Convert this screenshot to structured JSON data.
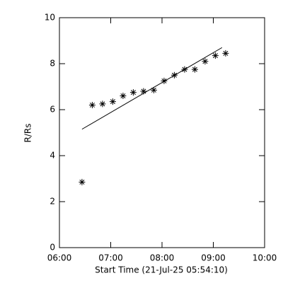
{
  "chart_data": {
    "type": "scatter",
    "xlabel": "Start Time (21-Jul-25 05:54:10)",
    "ylabel": "R/Rs",
    "xlim": [
      6,
      10
    ],
    "xticks": [
      {
        "value": 6,
        "label": "06:00"
      },
      {
        "value": 7,
        "label": "07:00"
      },
      {
        "value": 8,
        "label": "08:00"
      },
      {
        "value": 9,
        "label": "09:00"
      },
      {
        "value": 10,
        "label": "10:00"
      }
    ],
    "ylim": [
      0,
      10
    ],
    "yticks": [
      0,
      2,
      4,
      6,
      8,
      10
    ],
    "series": [
      {
        "style": "asterisk",
        "color": "#000000",
        "x": [
          6.44,
          6.64,
          6.84,
          7.04,
          7.24,
          7.44,
          7.64,
          7.84,
          8.04,
          8.24,
          8.44,
          8.64,
          8.84,
          9.04,
          9.24
        ],
        "values": [
          2.85,
          6.2,
          6.25,
          6.35,
          6.6,
          6.75,
          6.8,
          6.85,
          7.25,
          7.5,
          7.75,
          7.75,
          8.1,
          8.35,
          8.45
        ]
      },
      {
        "style": "line",
        "color": "#000000",
        "x": [
          6.44,
          9.17
        ],
        "values": [
          5.15,
          8.7
        ]
      }
    ]
  }
}
